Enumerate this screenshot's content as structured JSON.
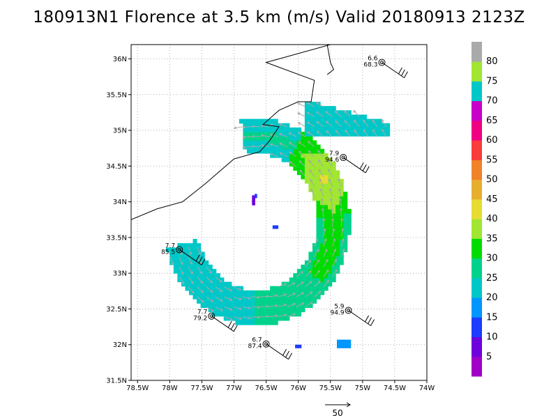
{
  "title": "180913N1 Florence at 3.5 km (m/s) Valid 20180913 2123Z",
  "chart_data": {
    "type": "heatmap",
    "storm_id": "180913N1",
    "storm_name": "Florence",
    "level": "3.5 km",
    "units": "m/s",
    "valid_time": "20180913 2123Z",
    "xlim": [
      -78.6,
      -74.0
    ],
    "ylim": [
      31.5,
      36.2
    ],
    "x_ticks": [
      -78.5,
      -78.0,
      -77.5,
      -77.0,
      -76.5,
      -76.0,
      -75.5,
      -75.0,
      -74.5,
      -74.0
    ],
    "x_tick_labels": [
      "78.5W",
      "78W",
      "77.5W",
      "77W",
      "76.5W",
      "76W",
      "75.5W",
      "75W",
      "74.5W",
      "74W"
    ],
    "y_ticks": [
      31.5,
      32.0,
      32.5,
      33.0,
      33.5,
      34.0,
      34.5,
      35.0,
      35.5,
      36.0
    ],
    "y_tick_labels": [
      "31.5N",
      "32N",
      "32.5N",
      "33N",
      "33.5N",
      "34N",
      "34.5N",
      "35N",
      "35.5N",
      "36N"
    ],
    "grid": true,
    "colorbar": {
      "levels": [
        5,
        10,
        15,
        20,
        25,
        30,
        35,
        40,
        45,
        50,
        55,
        60,
        65,
        70,
        75,
        80
      ],
      "labels": [
        "5",
        "10",
        "15",
        "20",
        "25",
        "30",
        "35",
        "40",
        "45",
        "50",
        "55",
        "60",
        "65",
        "70",
        "75",
        "80"
      ],
      "colors": [
        "#a000c8",
        "#6e00dc",
        "#1e3cff",
        "#0096ff",
        "#00c8c8",
        "#00d28c",
        "#00dc00",
        "#a0e632",
        "#e6dc32",
        "#e6af2d",
        "#f08228",
        "#fa3c3c",
        "#f00082",
        "#c800c8",
        "#00c8c8",
        "#a0e632",
        "#aaaaaa"
      ],
      "legend_placement": "right"
    },
    "storm_center": {
      "lon": -76.65,
      "lat": 33.72
    },
    "ring": {
      "inner_radius_deg": 0.95,
      "outer_radius_deg": 1.45,
      "gap_start_deg": 100,
      "gap_end_deg": 195
    },
    "observations": [
      {
        "lon": -74.7,
        "lat": 35.95,
        "top": "6.6",
        "bottom": "68.3"
      },
      {
        "lon": -75.3,
        "lat": 34.62,
        "top": "7.9",
        "bottom": "94.6"
      },
      {
        "lon": -77.85,
        "lat": 33.33,
        "top": "7.7",
        "bottom": "85.5"
      },
      {
        "lon": -75.22,
        "lat": 32.48,
        "top": "5.9",
        "bottom": "94.9"
      },
      {
        "lon": -77.35,
        "lat": 32.4,
        "top": "7.7",
        "bottom": "79.2"
      },
      {
        "lon": -76.5,
        "lat": 32.01,
        "top": "6.7",
        "bottom": "87.4"
      }
    ],
    "reference_vector": {
      "label": "50",
      "magnitude": 50
    }
  }
}
